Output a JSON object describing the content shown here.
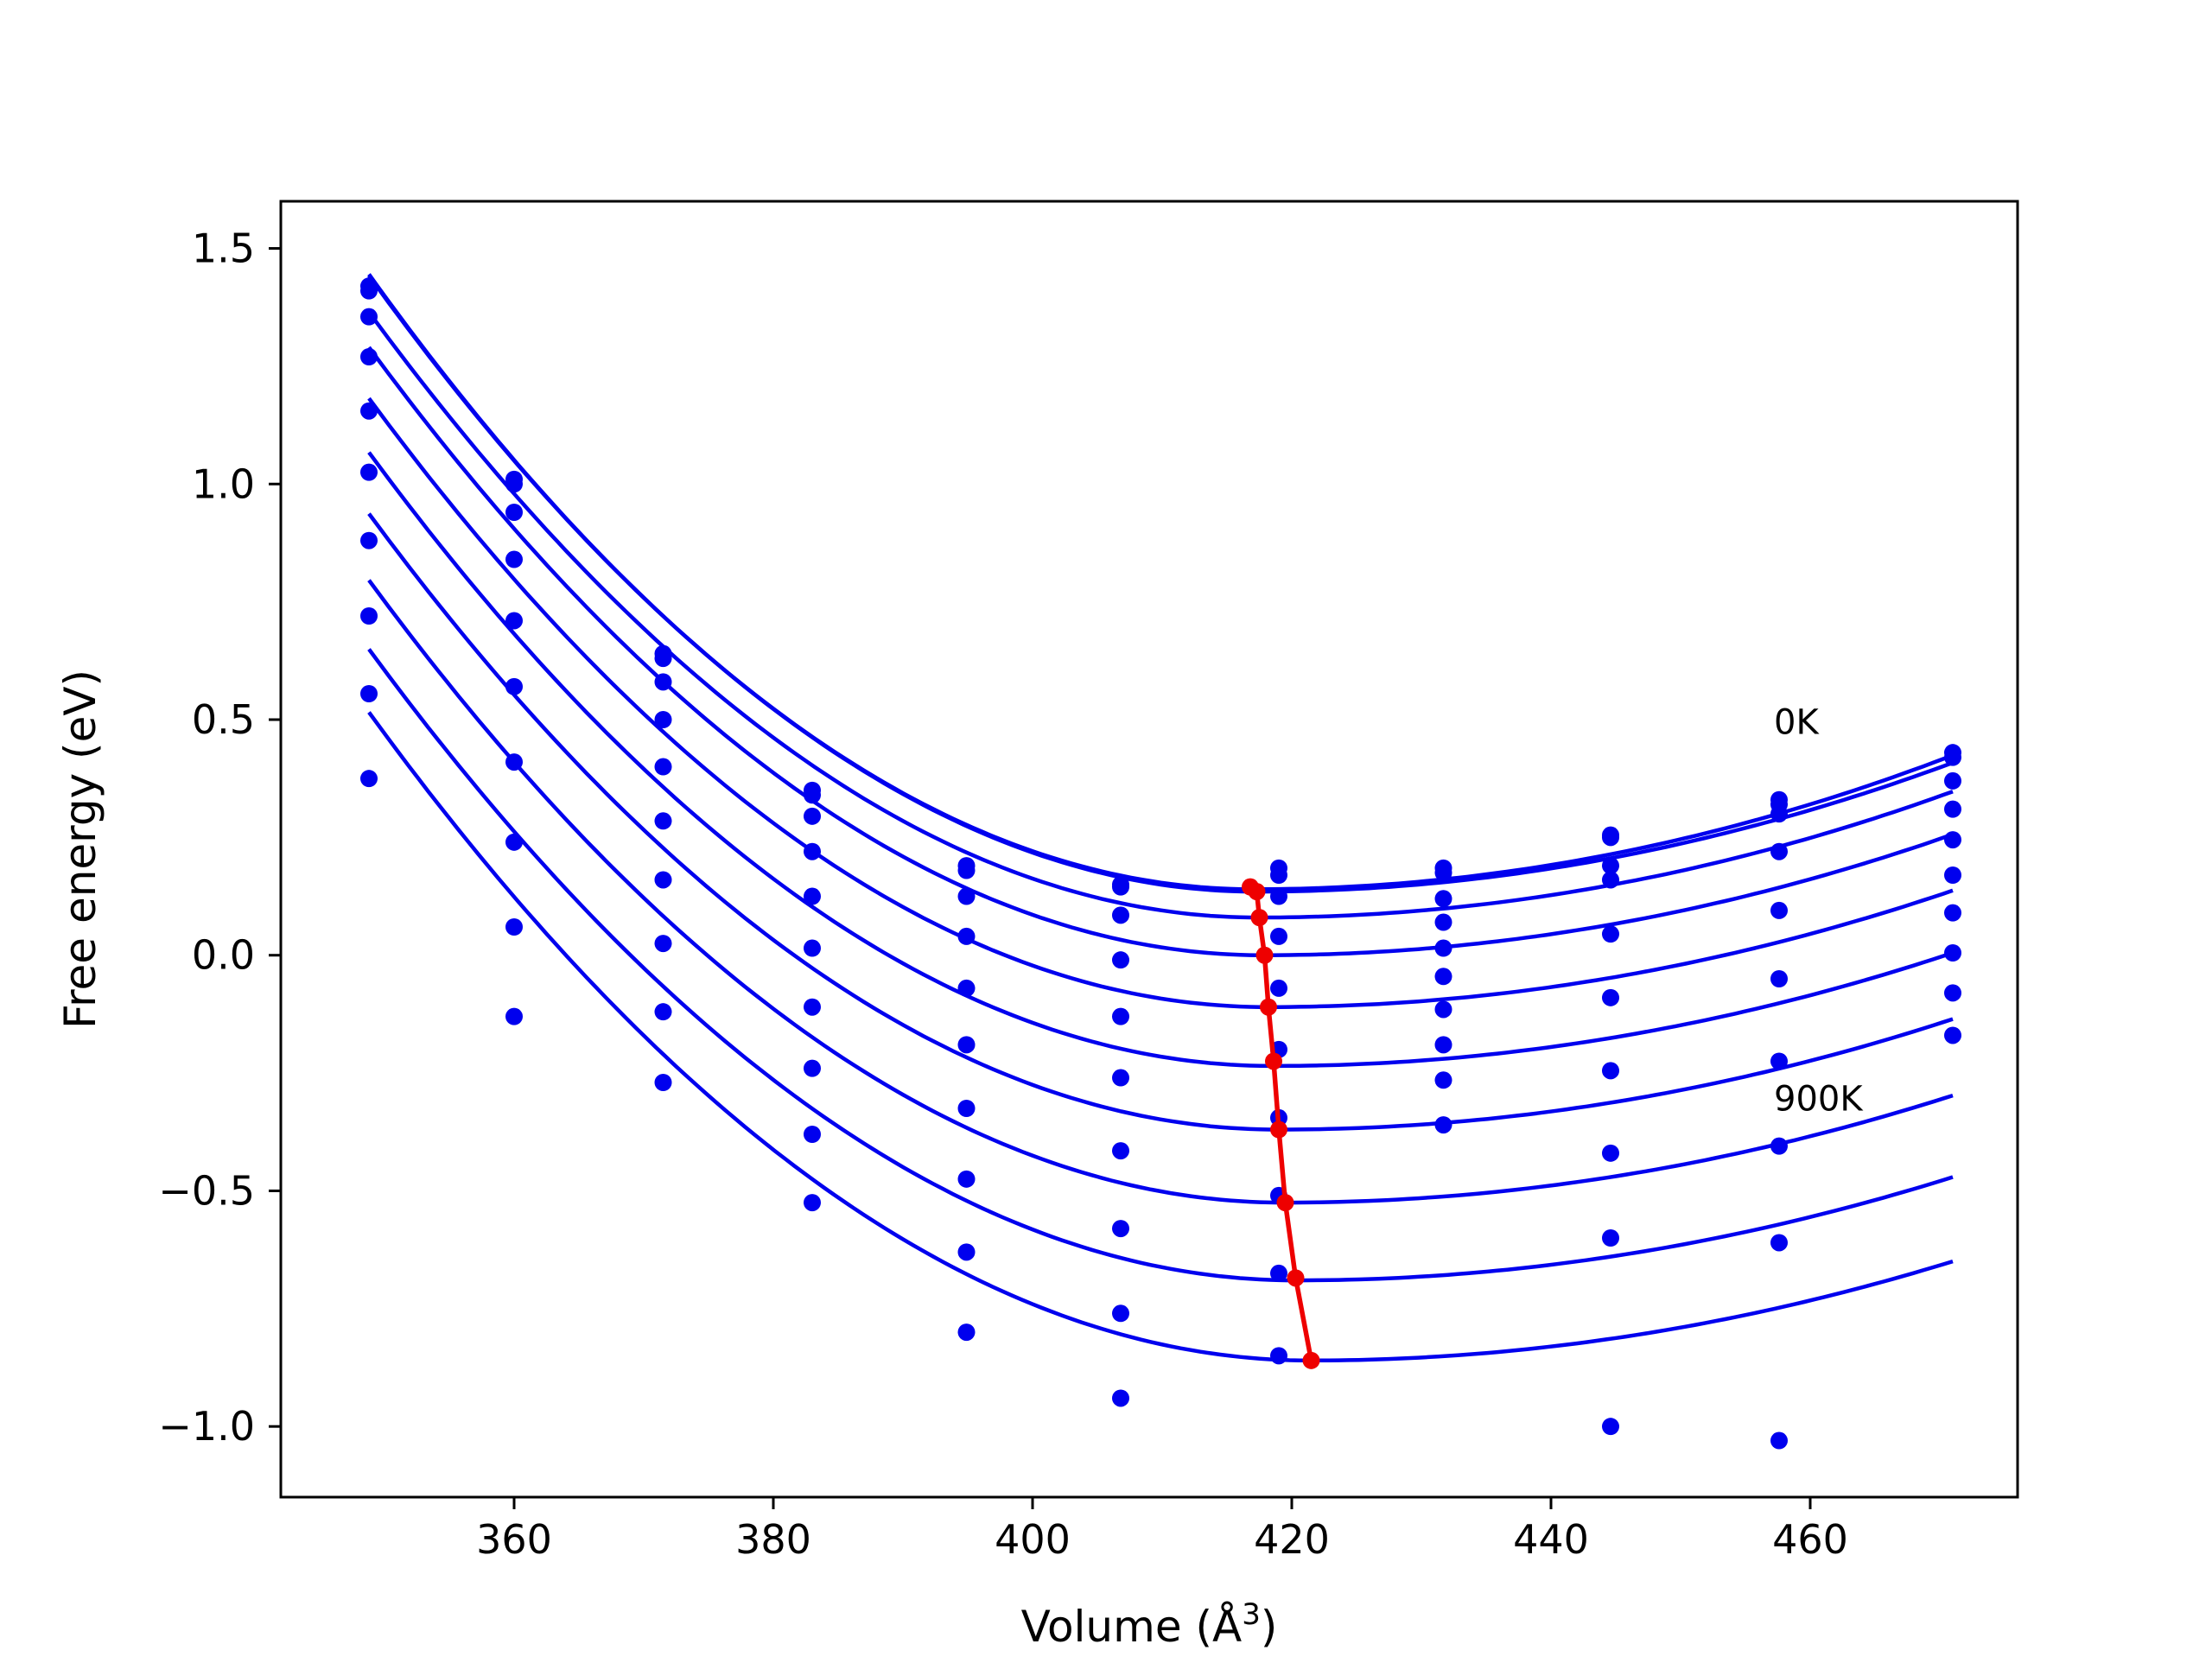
{
  "chart_data": {
    "type": "line",
    "title": "",
    "xlabel": "Volume (Å",
    "xlabel_superscript": "3",
    "xlabel_close": ")",
    "ylabel": "Free energy (eV)",
    "xlim": [
      342,
      476
    ],
    "ylim": [
      -1.15,
      1.6
    ],
    "x_ticks": [
      360,
      380,
      400,
      420,
      440,
      460
    ],
    "x_tick_labels": [
      "360",
      "380",
      "400",
      "420",
      "440",
      "460"
    ],
    "y_ticks": [
      -1.0,
      -0.5,
      0.0,
      0.5,
      1.0,
      1.5
    ],
    "y_tick_labels": [
      "−1.0",
      "−0.5",
      "0.0",
      "0.5",
      "1.0",
      "1.5"
    ],
    "grid": false,
    "colors": {
      "curves": "#0000ee",
      "points": "#0000ee",
      "minimum_line": "#ee0000",
      "axes": "#000000"
    },
    "annotations": [
      {
        "text": "0K",
        "x": 457.2,
        "y": 0.47
      },
      {
        "text": "900K",
        "x": 457.2,
        "y": -0.33
      }
    ],
    "volumes": [
      348.8,
      360.0,
      371.5,
      383.0,
      394.9,
      406.8,
      419.0,
      431.7,
      444.6,
      457.6,
      471.0
    ],
    "fit_x_range": [
      348.8,
      471.0
    ],
    "temperature_series": [
      {
        "F0": 0.14,
        "V0": 417.0,
        "curv_left": 0.00028,
        "curv_right": 9.75e-05,
        "points": [
          1.42,
          1.01,
          0.64,
          0.35,
          0.19,
          0.15,
          0.185,
          0.185,
          0.255,
          0.33,
          0.43
        ]
      },
      {
        "F0": 0.135,
        "V0": 417.2,
        "curv_left": 0.00028,
        "curv_right": 9.45e-05,
        "points": [
          1.41,
          1.0,
          0.63,
          0.34,
          0.18,
          0.145,
          0.17,
          0.175,
          0.25,
          0.32,
          0.42
        ]
      },
      {
        "F0": 0.08,
        "V0": 417.4,
        "curv_left": 0.000273,
        "curv_right": 9.31e-05,
        "points": [
          1.355,
          0.94,
          0.58,
          0.295,
          0.125,
          0.085,
          0.125,
          0.12,
          0.19,
          0.3,
          0.37
        ]
      },
      {
        "F0": 0.0,
        "V0": 417.8,
        "curv_left": 0.000271,
        "curv_right": 9.06e-05,
        "points": [
          1.27,
          0.84,
          0.5,
          0.22,
          0.04,
          -0.01,
          0.04,
          0.07,
          0.16,
          0.22,
          0.31
        ]
      },
      {
        "F0": -0.11,
        "V0": 418.1,
        "curv_left": 0.000269,
        "curv_right": 8.84e-05,
        "points": [
          1.155,
          0.71,
          0.4,
          0.125,
          -0.07,
          -0.13,
          -0.07,
          0.015,
          0.045,
          0.095,
          0.245
        ]
      },
      {
        "F0": -0.235,
        "V0": 418.5,
        "curv_left": 0.000268,
        "curv_right": 8.71e-05,
        "points": [
          1.025,
          0.57,
          0.285,
          0.015,
          -0.19,
          -0.26,
          -0.2,
          -0.045,
          -0.09,
          -0.05,
          0.17
        ]
      },
      {
        "F0": -0.37,
        "V0": 418.9,
        "curv_left": 0.000266,
        "curv_right": 8.64e-05,
        "points": [
          0.88,
          0.41,
          0.16,
          -0.11,
          -0.325,
          -0.415,
          -0.345,
          -0.115,
          -0.245,
          -0.225,
          0.09
        ]
      },
      {
        "F0": -0.525,
        "V0": 419.4,
        "curv_left": 0.000265,
        "curv_right": 8.54e-05,
        "points": [
          0.72,
          0.24,
          0.025,
          -0.24,
          -0.475,
          -0.58,
          -0.51,
          -0.19,
          -0.42,
          -0.405,
          0.005
        ]
      },
      {
        "F0": -0.69,
        "V0": 420.3,
        "curv_left": 0.000262,
        "curv_right": 8.53e-05,
        "points": [
          0.555,
          0.06,
          -0.12,
          -0.38,
          -0.63,
          -0.76,
          -0.675,
          -0.265,
          -0.6,
          -0.61,
          -0.08
        ]
      },
      {
        "F0": -0.86,
        "V0": 421.4,
        "curv_left": 0.000261,
        "curv_right": 8.55e-05,
        "points": [
          0.375,
          -0.13,
          -0.27,
          -0.525,
          -0.8,
          -0.94,
          -0.85,
          -0.36,
          -1.0,
          -1.03,
          -0.17
        ]
      }
    ],
    "minimum_path": [
      {
        "x": 416.8,
        "y": 0.145
      },
      {
        "x": 417.3,
        "y": 0.135
      },
      {
        "x": 417.5,
        "y": 0.08
      },
      {
        "x": 417.9,
        "y": 0.0
      },
      {
        "x": 418.2,
        "y": -0.11
      },
      {
        "x": 418.6,
        "y": -0.225
      },
      {
        "x": 419.0,
        "y": -0.37
      },
      {
        "x": 419.5,
        "y": -0.525
      },
      {
        "x": 420.3,
        "y": -0.685
      },
      {
        "x": 421.5,
        "y": -0.86
      }
    ]
  }
}
